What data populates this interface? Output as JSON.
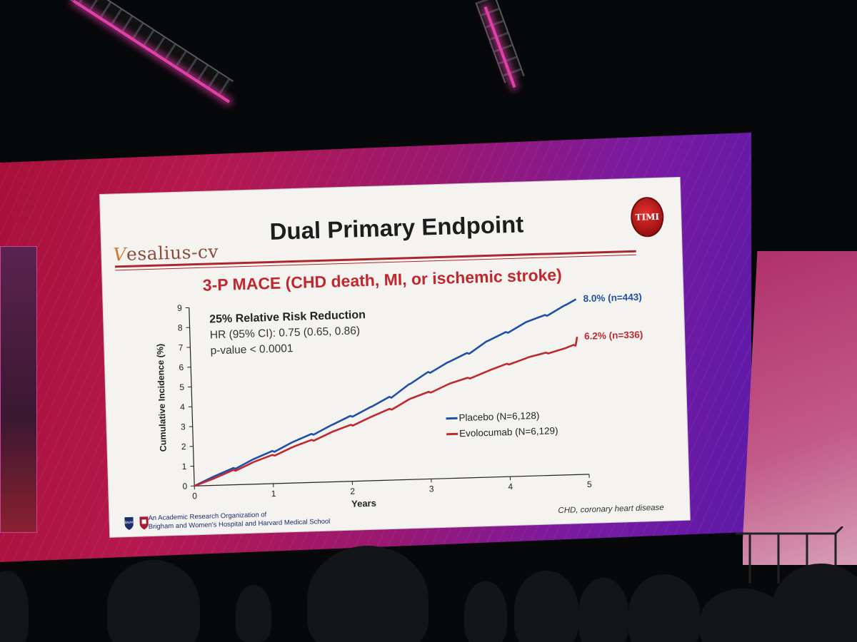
{
  "slide": {
    "logo_prefix": "V",
    "logo_rest": "esalius-cv",
    "title": "Dual Primary Endpoint",
    "badge": "TIMI",
    "subtitle": "3-P MACE (CHD death, MI, or ischemic stroke)",
    "footer_org_line1": "An Academic Research Organization of",
    "footer_org_line2": "Brigham and Women's Hospital and Harvard Medical School",
    "footer_logo_left": "BWH",
    "footnote": "CHD, coronary heart disease"
  },
  "chart_data": {
    "type": "line",
    "xlabel": "Years",
    "ylabel": "Cumulative Incidence (%)",
    "xlim": [
      0,
      5
    ],
    "ylim": [
      0,
      9
    ],
    "xticks": [
      0,
      1,
      2,
      3,
      4,
      5
    ],
    "yticks": [
      0,
      1,
      2,
      3,
      4,
      5,
      6,
      7,
      8,
      9
    ],
    "grid": false,
    "annotation": {
      "line1": "25% Relative Risk Reduction",
      "line2": "HR (95% CI): 0.75 (0.65, 0.86)",
      "line3": "p-value < 0.0001"
    },
    "legend_position": "bottom-right",
    "series": [
      {
        "name": "Placebo (N=6,128)",
        "color": "#1f4fa8",
        "end_label": "8.0% (n=443)",
        "x": [
          0,
          0.25,
          0.5,
          0.75,
          1,
          1.25,
          1.5,
          1.75,
          2,
          2.25,
          2.5,
          2.75,
          3,
          3.25,
          3.5,
          3.75,
          4,
          4.25,
          4.5,
          4.75,
          4.9
        ],
        "y": [
          0,
          0.45,
          0.85,
          1.25,
          1.65,
          2.05,
          2.45,
          2.85,
          3.3,
          3.7,
          4.2,
          4.8,
          5.4,
          5.85,
          6.3,
          6.85,
          7.3,
          7.75,
          8.1,
          8.55,
          8.85
        ]
      },
      {
        "name": "Evolocumab (N=6,129)",
        "color": "#c0282e",
        "end_label": "6.2% (n=336)",
        "x": [
          0,
          0.25,
          0.5,
          0.75,
          1,
          1.25,
          1.5,
          1.75,
          2,
          2.25,
          2.5,
          2.75,
          3,
          3.25,
          3.5,
          3.75,
          4,
          4.25,
          4.5,
          4.75,
          4.85,
          4.9
        ],
        "y": [
          0,
          0.35,
          0.75,
          1.1,
          1.45,
          1.8,
          2.15,
          2.5,
          2.85,
          3.2,
          3.6,
          4.05,
          4.4,
          4.75,
          5.05,
          5.35,
          5.7,
          5.95,
          6.2,
          6.4,
          6.55,
          6.95
        ]
      }
    ]
  }
}
